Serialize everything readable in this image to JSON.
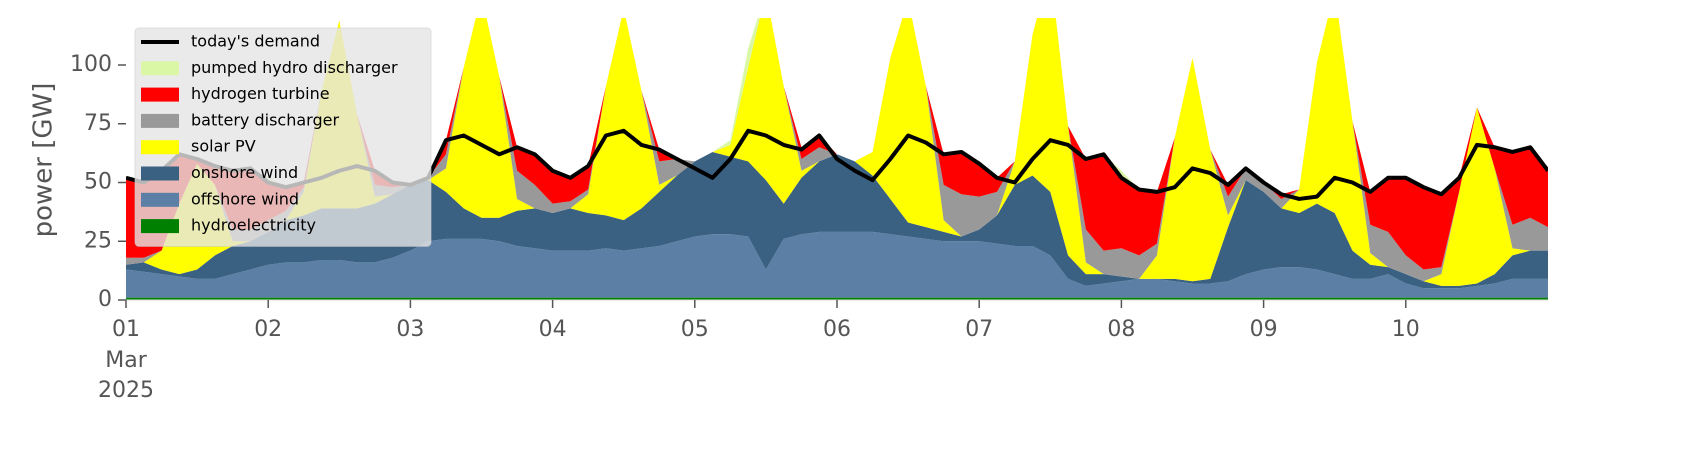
{
  "chart_data": {
    "type": "area",
    "ylabel": "power [GW]",
    "ylim": [
      0,
      120
    ],
    "yticks": [
      0,
      25,
      50,
      75,
      100
    ],
    "xlim": [
      1,
      11
    ],
    "xticks": [
      {
        "value": 1,
        "label": "01"
      },
      {
        "value": 2,
        "label": "02"
      },
      {
        "value": 3,
        "label": "03"
      },
      {
        "value": 4,
        "label": "04"
      },
      {
        "value": 5,
        "label": "05"
      },
      {
        "value": 6,
        "label": "06"
      },
      {
        "value": 7,
        "label": "07"
      },
      {
        "value": 8,
        "label": "08"
      },
      {
        "value": 9,
        "label": "09"
      },
      {
        "value": 10,
        "label": "10"
      }
    ],
    "x_first_tick_sublabels": [
      "Mar",
      "2025"
    ],
    "legend": "upper left",
    "x": [
      1,
      1.125,
      1.25,
      1.375,
      1.5,
      1.625,
      1.75,
      1.875,
      2,
      2.125,
      2.25,
      2.375,
      2.5,
      2.625,
      2.75,
      2.875,
      3,
      3.125,
      3.25,
      3.375,
      3.5,
      3.625,
      3.75,
      3.875,
      4,
      4.125,
      4.25,
      4.375,
      4.5,
      4.625,
      4.75,
      4.875,
      5,
      5.125,
      5.25,
      5.375,
      5.5,
      5.625,
      5.75,
      5.875,
      6,
      6.125,
      6.25,
      6.375,
      6.5,
      6.625,
      6.75,
      6.875,
      7,
      7.125,
      7.25,
      7.375,
      7.5,
      7.625,
      7.75,
      7.875,
      8,
      8.125,
      8.25,
      8.375,
      8.5,
      8.625,
      8.75,
      8.875,
      9,
      9.125,
      9.25,
      9.375,
      9.5,
      9.625,
      9.75,
      9.875,
      10,
      10.125,
      10.25,
      10.375,
      10.5,
      10.625,
      10.75,
      10.875,
      11
    ],
    "series": [
      {
        "name": "today's demand",
        "type": "line",
        "color": "#000000",
        "values": [
          52,
          50,
          55,
          62,
          60,
          57,
          55,
          56,
          50,
          48,
          50,
          52,
          55,
          57,
          55,
          50,
          49,
          52,
          68,
          70,
          66,
          62,
          65,
          62,
          55,
          52,
          57,
          70,
          72,
          66,
          64,
          60,
          56,
          52,
          60,
          72,
          70,
          66,
          64,
          70,
          60,
          55,
          51,
          60,
          70,
          67,
          62,
          63,
          58,
          52,
          50,
          60,
          68,
          66,
          60,
          62,
          52,
          47,
          46,
          48,
          56,
          54,
          49,
          56,
          50,
          45,
          43,
          44,
          52,
          50,
          46,
          52,
          52,
          48,
          45,
          52,
          66,
          65,
          63,
          65,
          55
        ]
      },
      {
        "name": "pumped hydro discharger",
        "color": "#d9f7a5",
        "values": [
          0,
          0,
          0,
          0,
          0,
          0,
          0,
          0,
          2,
          0,
          0,
          0,
          0,
          0,
          0,
          0,
          0,
          0,
          0,
          0,
          0,
          0,
          0,
          0,
          0,
          0,
          0,
          0,
          0,
          0,
          0,
          0,
          0,
          0,
          2,
          8,
          0,
          0,
          0,
          0,
          0,
          0,
          0,
          0,
          0,
          0,
          0,
          0,
          0,
          0,
          0,
          0,
          0,
          0,
          0,
          0,
          3,
          0,
          0,
          0,
          0,
          0,
          0,
          0,
          0,
          0,
          0,
          0,
          0,
          0,
          0,
          0,
          0,
          0,
          0,
          0,
          0,
          0,
          0,
          0,
          0
        ]
      },
      {
        "name": "hydrogen turbine",
        "color": "#ff0000",
        "values": [
          34,
          32,
          34,
          21,
          2,
          8,
          25,
          26,
          16,
          10,
          2,
          0,
          0,
          0,
          6,
          2,
          0,
          0,
          6,
          0,
          0,
          0,
          10,
          13,
          14,
          10,
          10,
          0,
          0,
          0,
          5,
          0,
          0,
          0,
          0,
          0,
          0,
          0,
          5,
          5,
          0,
          0,
          0,
          0,
          0,
          0,
          13,
          18,
          15,
          6,
          0,
          0,
          0,
          0,
          30,
          41,
          30,
          28,
          22,
          0,
          0,
          0,
          5,
          0,
          0,
          2,
          0,
          0,
          0,
          0,
          14,
          23,
          33,
          35,
          31,
          6,
          0,
          9,
          31,
          30,
          25
        ]
      },
      {
        "name": "battery discharger",
        "color": "#999999",
        "values": [
          3,
          2,
          0,
          0,
          0,
          0,
          5,
          5,
          5,
          4,
          2,
          0,
          0,
          0,
          5,
          3,
          0,
          1,
          6,
          0,
          0,
          0,
          12,
          10,
          4,
          3,
          2,
          0,
          0,
          0,
          10,
          7,
          0,
          0,
          0,
          0,
          0,
          0,
          5,
          6,
          0,
          0,
          0,
          0,
          0,
          0,
          15,
          18,
          14,
          10,
          0,
          0,
          0,
          0,
          14,
          10,
          12,
          10,
          5,
          0,
          0,
          0,
          8,
          5,
          4,
          4,
          0,
          0,
          0,
          0,
          12,
          15,
          8,
          5,
          3,
          0,
          0,
          0,
          10,
          14,
          10
        ]
      },
      {
        "name": "solar PV",
        "color": "#ffff00",
        "values": [
          0,
          0,
          8,
          30,
          45,
          30,
          2,
          0,
          0,
          0,
          10,
          50,
          80,
          40,
          3,
          0,
          0,
          0,
          10,
          60,
          95,
          60,
          5,
          0,
          0,
          0,
          8,
          55,
          90,
          50,
          3,
          0,
          0,
          0,
          5,
          40,
          80,
          50,
          3,
          0,
          0,
          0,
          10,
          60,
          95,
          60,
          5,
          0,
          0,
          0,
          10,
          60,
          95,
          55,
          5,
          0,
          0,
          0,
          10,
          60,
          95,
          55,
          5,
          0,
          0,
          0,
          10,
          60,
          95,
          55,
          5,
          0,
          0,
          0,
          5,
          40,
          75,
          45,
          3,
          0,
          0
        ]
      },
      {
        "name": "onshore wind",
        "color": "#3b6182",
        "values": [
          2,
          4,
          2,
          1,
          4,
          10,
          12,
          12,
          14,
          18,
          20,
          22,
          22,
          23,
          25,
          27,
          28,
          26,
          20,
          13,
          9,
          10,
          15,
          17,
          16,
          18,
          16,
          14,
          13,
          17,
          23,
          28,
          32,
          35,
          33,
          32,
          38,
          15,
          24,
          30,
          33,
          30,
          24,
          15,
          6,
          5,
          4,
          2,
          5,
          12,
          26,
          30,
          27,
          10,
          5,
          4,
          2,
          0,
          0,
          1,
          1,
          2,
          23,
          40,
          33,
          25,
          23,
          28,
          26,
          12,
          6,
          3,
          4,
          3,
          1,
          1,
          1,
          4,
          10,
          12,
          12
        ]
      },
      {
        "name": "offshore wind",
        "color": "#5b7fa5",
        "values": [
          12,
          11,
          10,
          9,
          8,
          8,
          10,
          12,
          14,
          15,
          15,
          16,
          16,
          15,
          15,
          17,
          20,
          24,
          25,
          25,
          25,
          24,
          22,
          21,
          20,
          20,
          20,
          21,
          20,
          21,
          22,
          24,
          26,
          27,
          27,
          26,
          12,
          25,
          27,
          28,
          28,
          28,
          28,
          27,
          26,
          25,
          24,
          24,
          24,
          23,
          22,
          22,
          18,
          8,
          5,
          6,
          7,
          8,
          8,
          7,
          6,
          6,
          7,
          10,
          12,
          13,
          13,
          12,
          10,
          8,
          8,
          10,
          6,
          4,
          4,
          4,
          5,
          6,
          8,
          8,
          8
        ]
      },
      {
        "name": "hydroelectricity",
        "color": "#008000",
        "values": [
          1,
          1,
          1,
          1,
          1,
          1,
          1,
          1,
          1,
          1,
          1,
          1,
          1,
          1,
          1,
          1,
          1,
          1,
          1,
          1,
          1,
          1,
          1,
          1,
          1,
          1,
          1,
          1,
          1,
          1,
          1,
          1,
          1,
          1,
          1,
          1,
          1,
          1,
          1,
          1,
          1,
          1,
          1,
          1,
          1,
          1,
          1,
          1,
          1,
          1,
          1,
          1,
          1,
          1,
          1,
          1,
          1,
          1,
          1,
          1,
          1,
          1,
          1,
          1,
          1,
          1,
          1,
          1,
          1,
          1,
          1,
          1,
          1,
          1,
          1,
          1,
          1,
          1,
          1,
          1,
          1
        ]
      }
    ]
  }
}
